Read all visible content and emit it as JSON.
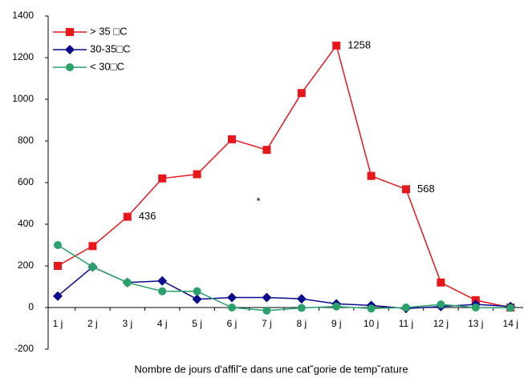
{
  "chart_data": {
    "type": "line",
    "x_label": "Nombre de jours d'affil˘e dans une cat˘gorie de temp˘rature",
    "annotation": "*",
    "categories": [
      "1 j",
      "2 j",
      "3 j",
      "4 j",
      "5 j",
      "6 j",
      "7 j",
      "8 j",
      "9 j",
      "10 j",
      "11 j",
      "12 j",
      "13 j",
      "14 j"
    ],
    "series": [
      {
        "name": "> 35 □C",
        "color": "#e8171c",
        "marker": "square",
        "values": [
          200,
          295,
          436,
          620,
          640,
          808,
          757,
          1030,
          1258,
          632,
          568,
          120,
          35,
          0
        ],
        "value_labels": [
          null,
          null,
          "436",
          null,
          null,
          null,
          null,
          null,
          "1258",
          null,
          "568",
          null,
          null,
          null
        ]
      },
      {
        "name": "30-35□C",
        "color": "#0a0a8c",
        "marker": "diamond",
        "values": [
          55,
          195,
          120,
          128,
          40,
          48,
          48,
          42,
          18,
          10,
          -5,
          5,
          15,
          5
        ]
      },
      {
        "name": "< 30□C",
        "color": "#2aa06a",
        "marker": "circle",
        "values": [
          300,
          195,
          120,
          78,
          78,
          0,
          -15,
          -2,
          5,
          -5,
          0,
          15,
          0,
          -2
        ]
      }
    ],
    "ylim": [
      -200,
      1400
    ],
    "yticks": [
      -200,
      0,
      200,
      400,
      600,
      800,
      1000,
      1200,
      1400
    ],
    "grid": false,
    "legend": "top-left"
  }
}
